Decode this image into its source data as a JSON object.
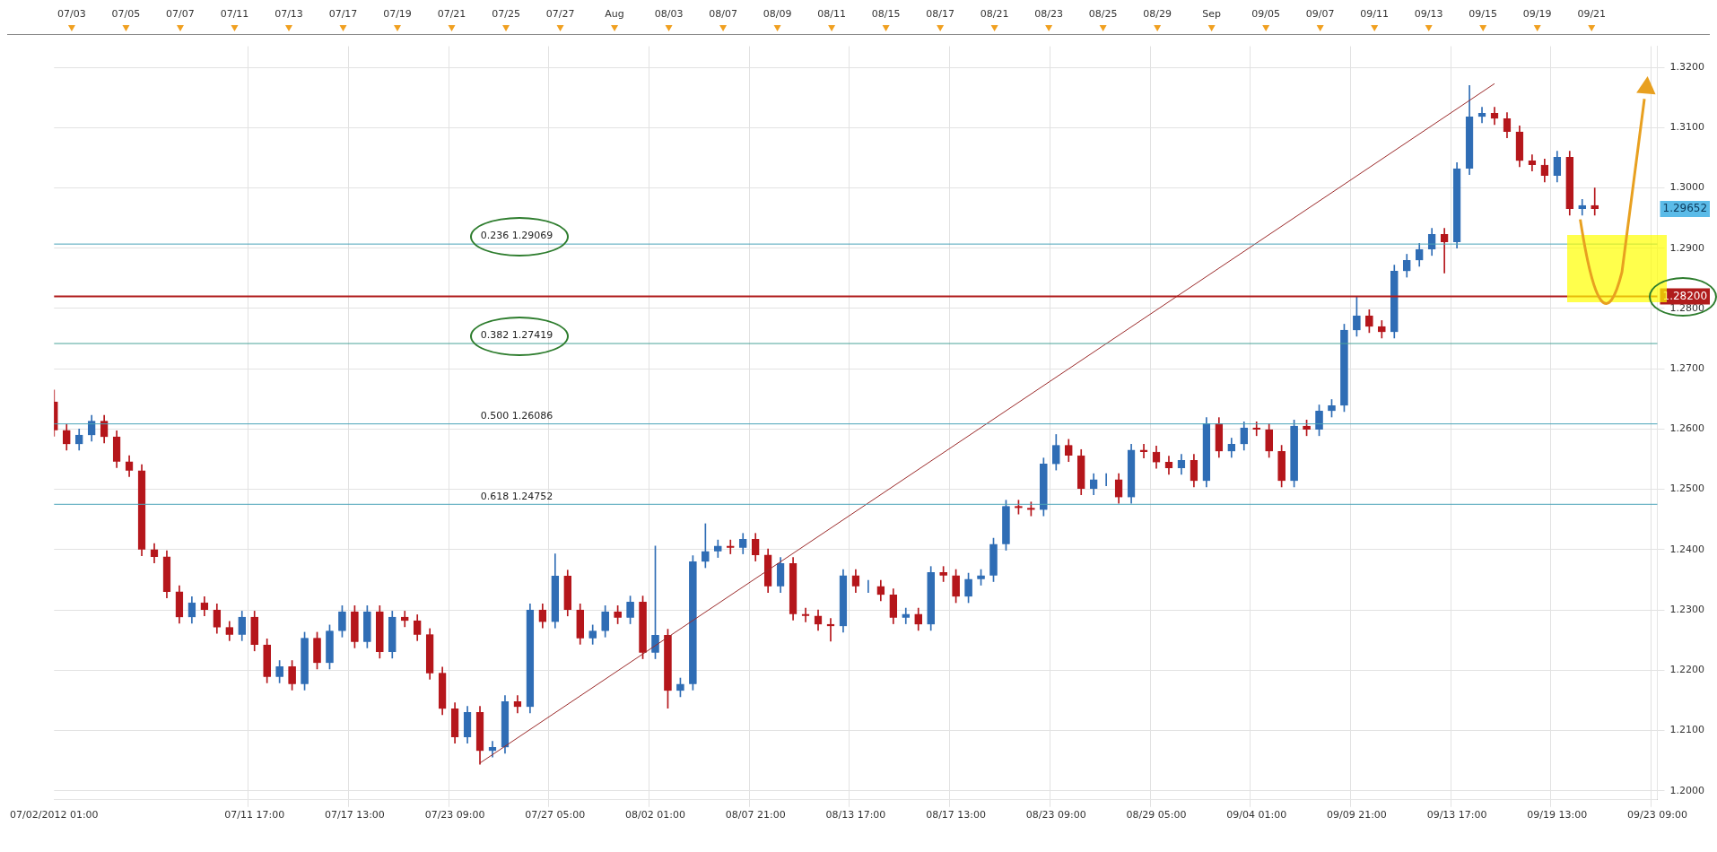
{
  "chart_data": {
    "type": "candlestick",
    "categories": [
      "07/02/2012 01:00",
      null,
      null,
      null,
      null,
      null,
      null,
      null,
      null,
      null,
      null,
      null,
      null,
      null,
      null,
      null,
      "07/11 17:00",
      null,
      null,
      null,
      null,
      null,
      null,
      null,
      "07/17 13:00",
      null,
      null,
      null,
      null,
      null,
      null,
      null,
      "07/23 09:00",
      null,
      null,
      null,
      null,
      null,
      null,
      null,
      "07/27 05:00",
      null,
      null,
      null,
      null,
      null,
      null,
      null,
      "08/02 01:00",
      null,
      null,
      null,
      null,
      null,
      null,
      null,
      "08/07 21:00",
      null,
      null,
      null,
      null,
      null,
      null,
      null,
      "08/13 17:00",
      null,
      null,
      null,
      null,
      null,
      null,
      null,
      "08/17 13:00",
      null,
      null,
      null,
      null,
      null,
      null,
      null,
      "08/23 09:00",
      null,
      null,
      null,
      null,
      null,
      null,
      null,
      "08/29 05:00",
      null,
      null,
      null,
      null,
      null,
      null,
      null,
      "09/04 01:00",
      null,
      null,
      null,
      null,
      null,
      null,
      null,
      "09/09 21:00",
      null,
      null,
      null,
      null,
      null,
      null,
      null,
      "09/13 17:00",
      null,
      null,
      null,
      null,
      null,
      null,
      null,
      "09/19 13:00",
      null,
      null,
      null,
      null,
      null,
      null,
      null,
      "09/23 09:00"
    ],
    "ohlc": [
      [
        1.2645,
        1.2665,
        1.2588,
        1.2598
      ],
      [
        1.2598,
        1.2608,
        1.2565,
        1.2575
      ],
      [
        1.2575,
        1.26,
        1.2565,
        1.259
      ],
      [
        1.259,
        1.2623,
        1.258,
        1.2613
      ],
      [
        1.2613,
        1.2623,
        1.2577,
        1.2587
      ],
      [
        1.2587,
        1.2597,
        1.2536,
        1.2546
      ],
      [
        1.2546,
        1.2556,
        1.2521,
        1.2531
      ],
      [
        1.2531,
        1.2541,
        1.239,
        1.24
      ],
      [
        1.24,
        1.241,
        1.2378,
        1.2388
      ],
      [
        1.2388,
        1.2398,
        1.232,
        1.233
      ],
      [
        1.233,
        1.234,
        1.2278,
        1.2288
      ],
      [
        1.2288,
        1.2322,
        1.2278,
        1.2312
      ],
      [
        1.2312,
        1.2322,
        1.229,
        1.23
      ],
      [
        1.23,
        1.231,
        1.2261,
        1.2271
      ],
      [
        1.2271,
        1.2281,
        1.2249,
        1.2259
      ],
      [
        1.2259,
        1.2298,
        1.2249,
        1.2288
      ],
      [
        1.2288,
        1.2298,
        1.2232,
        1.2242
      ],
      [
        1.2242,
        1.2252,
        1.2179,
        1.2189
      ],
      [
        1.2189,
        1.2216,
        1.2179,
        1.2206
      ],
      [
        1.2206,
        1.2216,
        1.2167,
        1.2177
      ],
      [
        1.2177,
        1.2263,
        1.2167,
        1.2253
      ],
      [
        1.2253,
        1.2263,
        1.2202,
        1.2212
      ],
      [
        1.2212,
        1.2275,
        1.2202,
        1.2265
      ],
      [
        1.2265,
        1.2307,
        1.2255,
        1.2297
      ],
      [
        1.2297,
        1.2307,
        1.2237,
        1.2247
      ],
      [
        1.2247,
        1.2307,
        1.2237,
        1.2297
      ],
      [
        1.2297,
        1.2307,
        1.222,
        1.223
      ],
      [
        1.223,
        1.2298,
        1.222,
        1.2288
      ],
      [
        1.2288,
        1.2298,
        1.2272,
        1.2282
      ],
      [
        1.2282,
        1.2292,
        1.2249,
        1.2259
      ],
      [
        1.2259,
        1.2269,
        1.2185,
        1.2195
      ],
      [
        1.2195,
        1.2205,
        1.2126,
        1.2136
      ],
      [
        1.2136,
        1.2146,
        1.2079,
        1.2089
      ],
      [
        1.2089,
        1.214,
        1.2079,
        1.213
      ],
      [
        1.213,
        1.214,
        1.2044,
        1.2066
      ],
      [
        1.2066,
        1.2082,
        1.2056,
        1.2072
      ],
      [
        1.2072,
        1.2158,
        1.2062,
        1.2148
      ],
      [
        1.2148,
        1.2158,
        1.2129,
        1.2139
      ],
      [
        1.2139,
        1.231,
        1.2129,
        1.23
      ],
      [
        1.23,
        1.231,
        1.227,
        1.228
      ],
      [
        1.228,
        1.2393,
        1.227,
        1.2356
      ],
      [
        1.2356,
        1.2366,
        1.229,
        1.23
      ],
      [
        1.23,
        1.231,
        1.2243,
        1.2253
      ],
      [
        1.2253,
        1.2275,
        1.2243,
        1.2265
      ],
      [
        1.2265,
        1.2307,
        1.2255,
        1.2297
      ],
      [
        1.2297,
        1.2307,
        1.2277,
        1.2287
      ],
      [
        1.2287,
        1.2323,
        1.2277,
        1.2313
      ],
      [
        1.2313,
        1.2323,
        1.2219,
        1.2229
      ],
      [
        1.2229,
        1.2406,
        1.2219,
        1.2258
      ],
      [
        1.2258,
        1.2268,
        1.2137,
        1.2166
      ],
      [
        1.2166,
        1.2187,
        1.2156,
        1.2177
      ],
      [
        1.2177,
        1.239,
        1.2167,
        1.238
      ],
      [
        1.238,
        1.2443,
        1.237,
        1.2397
      ],
      [
        1.2397,
        1.2416,
        1.2387,
        1.2406
      ],
      [
        1.2406,
        1.2416,
        1.2393,
        1.2403
      ],
      [
        1.2403,
        1.2427,
        1.2393,
        1.2417
      ],
      [
        1.2417,
        1.2427,
        1.2381,
        1.2391
      ],
      [
        1.2391,
        1.2401,
        1.2329,
        1.2339
      ],
      [
        1.2339,
        1.2387,
        1.2329,
        1.2377
      ],
      [
        1.2377,
        1.2387,
        1.2283,
        1.2293
      ],
      [
        1.2293,
        1.2303,
        1.228,
        1.229
      ],
      [
        1.229,
        1.23,
        1.2266,
        1.2276
      ],
      [
        1.2276,
        1.2286,
        1.2248,
        1.2273
      ],
      [
        1.2273,
        1.2367,
        1.2263,
        1.2357
      ],
      [
        1.2357,
        1.2367,
        1.2329,
        1.2339
      ],
      [
        1.2339,
        1.2349,
        1.2329,
        1.2339
      ],
      [
        1.2339,
        1.2349,
        1.2315,
        1.2325
      ],
      [
        1.2325,
        1.2335,
        1.2277,
        1.2287
      ],
      [
        1.2287,
        1.2303,
        1.2277,
        1.2293
      ],
      [
        1.2293,
        1.2303,
        1.2266,
        1.2276
      ],
      [
        1.2276,
        1.2372,
        1.2266,
        1.2362
      ],
      [
        1.2362,
        1.2372,
        1.2347,
        1.2357
      ],
      [
        1.2357,
        1.2367,
        1.2312,
        1.2322
      ],
      [
        1.2322,
        1.2361,
        1.2312,
        1.2351
      ],
      [
        1.2351,
        1.2367,
        1.2341,
        1.2357
      ],
      [
        1.2357,
        1.2419,
        1.2347,
        1.2409
      ],
      [
        1.2409,
        1.2482,
        1.2399,
        1.2472
      ],
      [
        1.2472,
        1.2482,
        1.2459,
        1.2469
      ],
      [
        1.2469,
        1.2479,
        1.2456,
        1.2466
      ],
      [
        1.2466,
        1.2552,
        1.2456,
        1.2542
      ],
      [
        1.2542,
        1.2591,
        1.2532,
        1.2573
      ],
      [
        1.2573,
        1.2583,
        1.2546,
        1.2556
      ],
      [
        1.2556,
        1.2566,
        1.2491,
        1.2501
      ],
      [
        1.2501,
        1.2526,
        1.2491,
        1.2516
      ],
      [
        1.2516,
        1.2526,
        1.2506,
        1.2516
      ],
      [
        1.2516,
        1.2526,
        1.2477,
        1.2487
      ],
      [
        1.2487,
        1.2575,
        1.2477,
        1.2565
      ],
      [
        1.2565,
        1.2575,
        1.2552,
        1.2562
      ],
      [
        1.2562,
        1.2572,
        1.2535,
        1.2545
      ],
      [
        1.2545,
        1.2555,
        1.2525,
        1.2535
      ],
      [
        1.2535,
        1.2558,
        1.2525,
        1.2548
      ],
      [
        1.2548,
        1.2558,
        1.2504,
        1.2514
      ],
      [
        1.2514,
        1.2619,
        1.2504,
        1.2609
      ],
      [
        1.2609,
        1.2619,
        1.2553,
        1.2563
      ],
      [
        1.2563,
        1.2585,
        1.2553,
        1.2575
      ],
      [
        1.2575,
        1.2612,
        1.2565,
        1.2602
      ],
      [
        1.2602,
        1.2612,
        1.2589,
        1.2599
      ],
      [
        1.2599,
        1.2609,
        1.2553,
        1.2563
      ],
      [
        1.2563,
        1.2573,
        1.2504,
        1.2514
      ],
      [
        1.2514,
        1.2615,
        1.2504,
        1.2605
      ],
      [
        1.2605,
        1.2615,
        1.2589,
        1.2599
      ],
      [
        1.2599,
        1.264,
        1.2589,
        1.263
      ],
      [
        1.263,
        1.2649,
        1.262,
        1.2639
      ],
      [
        1.2639,
        1.2774,
        1.2629,
        1.2764
      ],
      [
        1.2764,
        1.282,
        1.2754,
        1.2788
      ],
      [
        1.2788,
        1.2798,
        1.276,
        1.277
      ],
      [
        1.277,
        1.278,
        1.2751,
        1.2761
      ],
      [
        1.2761,
        1.2872,
        1.2751,
        1.2862
      ],
      [
        1.2862,
        1.289,
        1.2852,
        1.288
      ],
      [
        1.288,
        1.2908,
        1.287,
        1.2898
      ],
      [
        1.2898,
        1.2933,
        1.2888,
        1.2923
      ],
      [
        1.2923,
        1.2933,
        1.2859,
        1.291
      ],
      [
        1.291,
        1.3042,
        1.29,
        1.3032
      ],
      [
        1.3032,
        1.317,
        1.3022,
        1.3118
      ],
      [
        1.3118,
        1.3134,
        1.3108,
        1.3124
      ],
      [
        1.3124,
        1.3134,
        1.3105,
        1.3115
      ],
      [
        1.3115,
        1.3125,
        1.3083,
        1.3093
      ],
      [
        1.3093,
        1.3103,
        1.3035,
        1.3045
      ],
      [
        1.3045,
        1.3055,
        1.3028,
        1.3038
      ],
      [
        1.3038,
        1.3048,
        1.301,
        1.302
      ],
      [
        1.302,
        1.3061,
        1.301,
        1.3051
      ],
      [
        1.3051,
        1.3061,
        1.2955,
        1.2965
      ],
      [
        1.2965,
        1.2981,
        1.2955,
        1.2971
      ],
      [
        1.2971,
        1.3,
        1.2955,
        1.2965
      ],
      null,
      null,
      null,
      null,
      null
    ],
    "colors": [
      "#b5161b",
      "#b5161b",
      "#2f6db5",
      "#2f6db5",
      "#b5161b",
      "#b5161b",
      "#b5161b",
      "#b5161b",
      "#b5161b",
      "#b5161b",
      "#b5161b",
      "#2f6db5",
      "#b5161b",
      "#b5161b",
      "#b5161b",
      "#2f6db5",
      "#b5161b",
      "#b5161b",
      "#2f6db5",
      "#b5161b",
      "#2f6db5",
      "#b5161b",
      "#2f6db5",
      "#2f6db5",
      "#b5161b",
      "#2f6db5",
      "#b5161b",
      "#2f6db5",
      "#b5161b",
      "#b5161b",
      "#b5161b",
      "#b5161b",
      "#b5161b",
      "#2f6db5",
      "#b5161b",
      "#2f6db5",
      "#2f6db5",
      "#b5161b",
      "#2f6db5",
      "#b5161b",
      "#2f6db5",
      "#b5161b",
      "#b5161b",
      "#2f6db5",
      "#2f6db5",
      "#b5161b",
      "#2f6db5",
      "#b5161b",
      "#2f6db5",
      "#b5161b",
      "#2f6db5",
      "#2f6db5",
      "#2f6db5",
      "#2f6db5",
      "#b5161b",
      "#2f6db5",
      "#b5161b",
      "#b5161b",
      "#2f6db5",
      "#b5161b",
      "#b5161b",
      "#b5161b",
      "#b5161b",
      "#2f6db5",
      "#b5161b",
      "#2f6db5",
      "#b5161b",
      "#b5161b",
      "#2f6db5",
      "#b5161b",
      "#2f6db5",
      "#b5161b",
      "#b5161b",
      "#2f6db5",
      "#2f6db5",
      "#2f6db5",
      "#2f6db5",
      "#b5161b",
      "#b5161b",
      "#2f6db5",
      "#2f6db5",
      "#b5161b",
      "#b5161b",
      "#2f6db5",
      "#2f6db5",
      "#b5161b",
      "#2f6db5",
      "#b5161b",
      "#b5161b",
      "#b5161b",
      "#2f6db5",
      "#b5161b",
      "#2f6db5",
      "#b5161b",
      "#2f6db5",
      "#2f6db5",
      "#b5161b",
      "#b5161b",
      "#b5161b",
      "#2f6db5",
      "#b5161b",
      "#2f6db5",
      "#2f6db5",
      "#2f6db5",
      "#2f6db5",
      "#b5161b",
      "#b5161b",
      "#2f6db5",
      "#2f6db5",
      "#2f6db5",
      "#2f6db5",
      "#b5161b",
      "#2f6db5",
      "#2f6db5",
      "#2f6db5",
      "#b5161b",
      "#b5161b",
      "#b5161b",
      "#b5161b",
      "#b5161b",
      "#2f6db5",
      "#b5161b",
      "#2f6db5",
      "#b5161b",
      null,
      null,
      null,
      null,
      null
    ],
    "series": [
      {
        "type": "line",
        "color": "#9b2a2a",
        "values": [
          null,
          null,
          null,
          null,
          null,
          null,
          null,
          null,
          null,
          null,
          null,
          null,
          null,
          null,
          null,
          null,
          null,
          null,
          null,
          null,
          null,
          null,
          null,
          null,
          null,
          null,
          null,
          null,
          null,
          null,
          null,
          null,
          null,
          null,
          1.2046,
          null,
          null,
          null,
          null,
          null,
          null,
          null,
          null,
          null,
          null,
          null,
          null,
          null,
          null,
          null,
          null,
          null,
          null,
          null,
          null,
          null,
          null,
          null,
          null,
          null,
          null,
          null,
          null,
          null,
          null,
          null,
          null,
          null,
          null,
          null,
          null,
          null,
          null,
          null,
          null,
          null,
          null,
          null,
          null,
          null,
          null,
          null,
          null,
          null,
          null,
          null,
          null,
          null,
          null,
          null,
          null,
          null,
          null,
          null,
          null,
          null,
          null,
          null,
          null,
          null,
          null,
          null,
          null,
          null,
          null,
          null,
          null,
          null,
          null,
          null,
          null,
          null,
          null,
          null,
          null,
          1.3173,
          null,
          null,
          null,
          null,
          null,
          null,
          null,
          null,
          null,
          null,
          null,
          null,
          null
        ]
      }
    ],
    "ylim": [
      1.1985,
      1.3235
    ],
    "yticks": [
      {
        "value": 1.2,
        "label": "1.2000"
      },
      {
        "value": 1.21,
        "label": "1.2100"
      },
      {
        "value": 1.22,
        "label": "1.2200"
      },
      {
        "value": 1.23,
        "label": "1.2300"
      },
      {
        "value": 1.24,
        "label": "1.2400"
      },
      {
        "value": 1.25,
        "label": "1.2500"
      },
      {
        "value": 1.26,
        "label": "1.2600"
      },
      {
        "value": 1.27,
        "label": "1.2700"
      },
      {
        "value": 1.28,
        "label": "1.2800"
      },
      {
        "value": 1.29,
        "label": "1.2900"
      },
      {
        "value": 1.3,
        "label": "1.3000"
      },
      {
        "value": 1.31,
        "label": "1.3100"
      },
      {
        "value": 1.32,
        "label": "1.3200"
      }
    ],
    "ref_lines": [
      {
        "axis": "y",
        "value": 1.29069,
        "label": "0.236 1.29069",
        "color": "#4aa3b8"
      },
      {
        "axis": "y",
        "value": 1.27419,
        "label": "0.382 1.27419",
        "color": "#4aa39a"
      },
      {
        "axis": "y",
        "value": 1.26086,
        "label": "0.500 1.26086",
        "color": "#4aa3b8"
      },
      {
        "axis": "y",
        "value": 1.24752,
        "label": "0.618 1.24752",
        "color": "#4aa3b8"
      },
      {
        "axis": "y",
        "value": 1.282,
        "color": "#b01c1c"
      }
    ],
    "annotations": [
      "1.29652",
      "1.28200",
      "07/03",
      "07/05",
      "07/07",
      "07/11",
      "07/13",
      "07/17",
      "07/19",
      "07/21",
      "07/25",
      "07/27",
      "Aug",
      "08/03",
      "08/07",
      "08/09",
      "08/11",
      "08/15",
      "08/17",
      "08/21",
      "08/23",
      "08/25",
      "08/29",
      "Sep",
      "09/05",
      "09/07",
      "09/11",
      "09/13",
      "09/15",
      "09/19",
      "09/21"
    ],
    "grid": true
  }
}
